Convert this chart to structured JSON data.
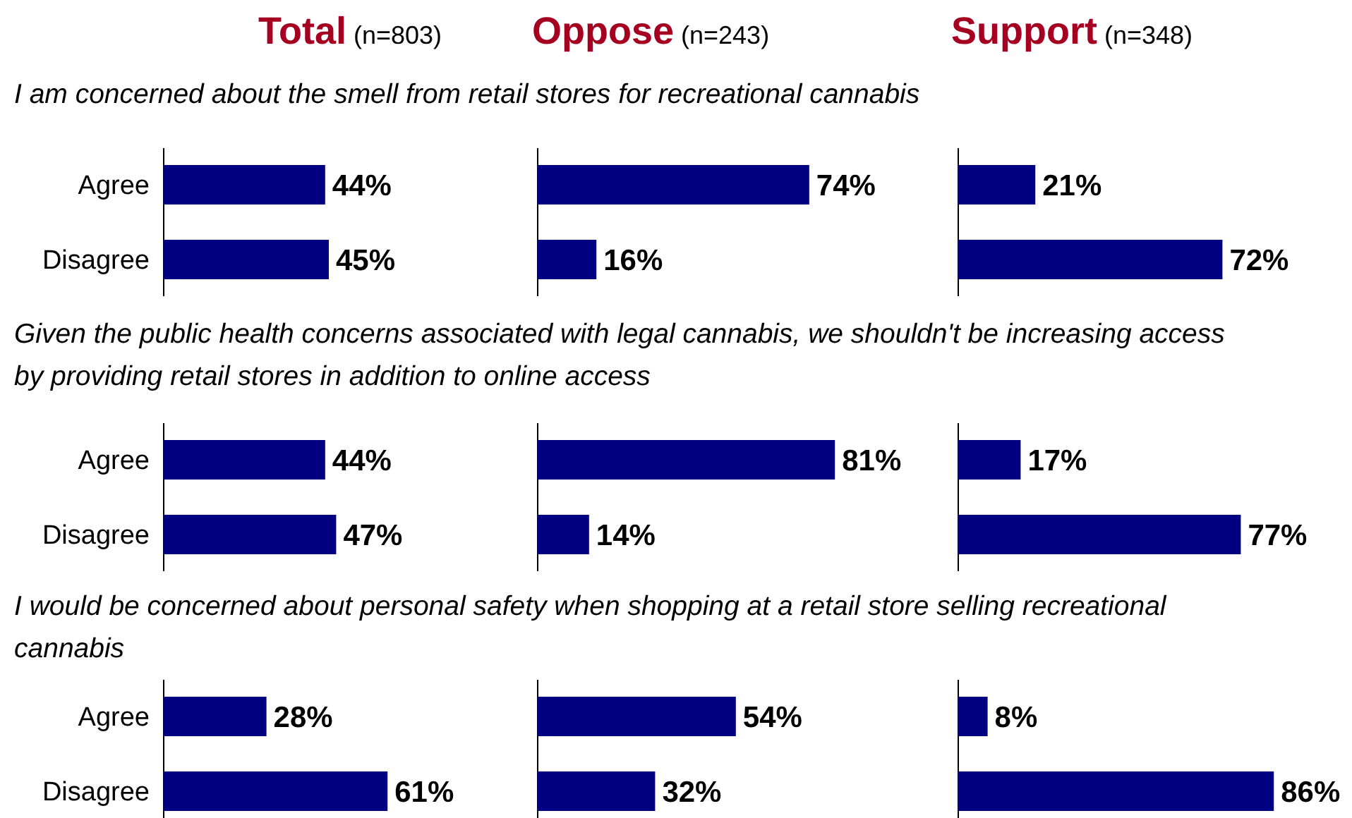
{
  "chart_data": [
    {
      "type": "bar",
      "orientation": "horizontal",
      "title": "Total (n=803)",
      "subtitle": "I am concerned about the smell from retail stores for recreational cannabis",
      "categories": [
        "Agree",
        "Disagree"
      ],
      "values": [
        44,
        45
      ],
      "value_labels": [
        "44%",
        "45%"
      ],
      "color": "#000080",
      "tick_labels": "y"
    },
    {
      "type": "bar",
      "orientation": "horizontal",
      "title": "Oppose (n=243)",
      "categories": [
        null,
        null
      ],
      "values": [
        74,
        16
      ],
      "value_labels": [
        "74%",
        "16%"
      ],
      "color": "#000080",
      "tick_labels": false
    },
    {
      "type": "bar",
      "orientation": "horizontal",
      "title": "Support (n=348)",
      "categories": [
        null,
        null
      ],
      "values": [
        21,
        72
      ],
      "value_labels": [
        "21%",
        "72%"
      ],
      "color": "#000080",
      "tick_labels": false
    },
    {
      "type": "bar",
      "orientation": "horizontal",
      "subtitle": "Given the public health concerns associated with legal cannabis, we shouldn't be increasing access by providing retail stores in addition to online access",
      "categories": [
        "Agree",
        "Disagree"
      ],
      "values": [
        44,
        47
      ],
      "value_labels": [
        "44%",
        "47%"
      ],
      "color": "#000080",
      "tick_labels": "y"
    },
    {
      "type": "bar",
      "orientation": "horizontal",
      "categories": [
        null,
        null
      ],
      "values": [
        81,
        14
      ],
      "value_labels": [
        "81%",
        "14%"
      ],
      "color": "#000080",
      "tick_labels": false
    },
    {
      "type": "bar",
      "orientation": "horizontal",
      "categories": [
        null,
        null
      ],
      "values": [
        17,
        77
      ],
      "value_labels": [
        "17%",
        "77%"
      ],
      "color": "#000080",
      "tick_labels": false
    },
    {
      "type": "bar",
      "orientation": "horizontal",
      "subtitle": "I would be concerned about personal safety when shopping at a retail store selling recreational cannabis",
      "categories": [
        "Agree",
        "Disagree"
      ],
      "values": [
        28,
        61
      ],
      "value_labels": [
        "28%",
        "61%"
      ],
      "color": "#000080",
      "tick_labels": "y"
    },
    {
      "type": "bar",
      "orientation": "horizontal",
      "categories": [
        null,
        null
      ],
      "values": [
        54,
        32
      ],
      "value_labels": [
        "54%",
        "32%"
      ],
      "color": "#000080",
      "tick_labels": false
    },
    {
      "type": "bar",
      "orientation": "horizontal",
      "categories": [
        null,
        null
      ],
      "values": [
        8,
        86
      ],
      "value_labels": [
        "8%",
        "86%"
      ],
      "color": "#000080",
      "tick_labels": false
    }
  ]
}
